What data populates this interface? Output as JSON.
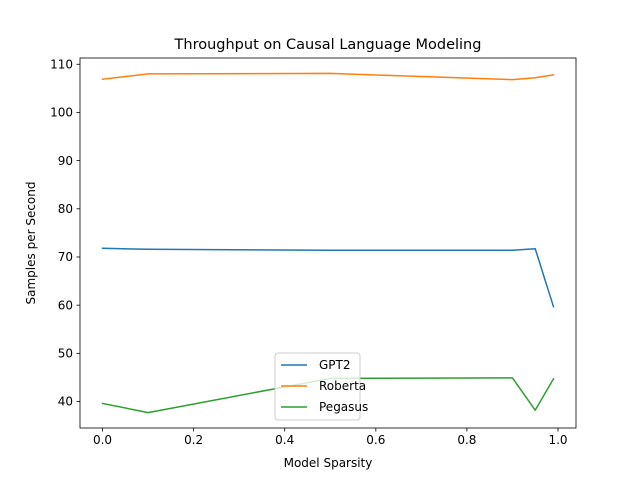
{
  "chart_data": {
    "type": "line",
    "title": "Throughput on Causal Language Modeling",
    "xlabel": "Model Sparsity",
    "ylabel": "Samples per Second",
    "xlim": [
      -0.0495,
      1.0395
    ],
    "ylim": [
      34.5,
      111.3
    ],
    "xticks": [
      0.0,
      0.2,
      0.4,
      0.6,
      0.8,
      1.0
    ],
    "xtick_labels": [
      "0.0",
      "0.2",
      "0.4",
      "0.6",
      "0.8",
      "1.0"
    ],
    "yticks": [
      40,
      50,
      60,
      70,
      80,
      90,
      100,
      110
    ],
    "ytick_labels": [
      "40",
      "50",
      "60",
      "70",
      "80",
      "90",
      "100",
      "110"
    ],
    "grid": false,
    "legend_position": "lower-center",
    "series": [
      {
        "name": "GPT2",
        "color": "#1f77b4",
        "x": [
          0.0,
          0.1,
          0.5,
          0.9,
          0.95,
          0.99
        ],
        "y": [
          71.8,
          71.6,
          71.4,
          71.4,
          71.7,
          59.7
        ]
      },
      {
        "name": "Roberta",
        "color": "#ff7f0e",
        "x": [
          0.0,
          0.1,
          0.5,
          0.9,
          0.95,
          0.99
        ],
        "y": [
          106.9,
          108.0,
          108.1,
          106.8,
          107.2,
          107.8
        ]
      },
      {
        "name": "Pegasus",
        "color": "#2ca02c",
        "x": [
          0.0,
          0.1,
          0.5,
          0.9,
          0.95,
          0.99
        ],
        "y": [
          39.6,
          37.7,
          44.8,
          44.9,
          38.2,
          44.7
        ]
      }
    ]
  }
}
